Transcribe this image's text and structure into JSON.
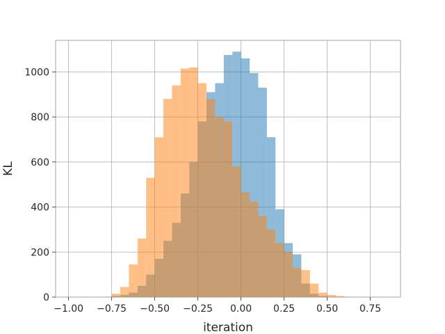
{
  "chart_data": {
    "type": "bar",
    "title": "",
    "xlabel": "iteration",
    "ylabel": "KL",
    "xlim": [
      -1.075,
      0.925
    ],
    "ylim": [
      0,
      1140
    ],
    "grid": true,
    "legend": "none",
    "bin_width": 0.05,
    "x_ticks": [
      -1.0,
      -0.75,
      -0.5,
      -0.25,
      0.0,
      0.25,
      0.5,
      0.75
    ],
    "x_tick_labels": [
      "−1.00",
      "−0.75",
      "−0.50",
      "−0.25",
      "0.00",
      "0.25",
      "0.50",
      "0.75"
    ],
    "y_ticks": [
      0,
      200,
      400,
      600,
      800,
      1000
    ],
    "y_tick_labels": [
      "0",
      "200",
      "400",
      "600",
      "800",
      "1000"
    ],
    "series": [
      {
        "color": "#1f77b4",
        "opacity": 0.5,
        "bin_starts": [
          -0.8,
          -0.75,
          -0.7,
          -0.65,
          -0.6,
          -0.55,
          -0.5,
          -0.45,
          -0.4,
          -0.35,
          -0.3,
          -0.25,
          -0.2,
          -0.15,
          -0.1,
          -0.05,
          0.0,
          0.05,
          0.1,
          0.15,
          0.2,
          0.25,
          0.3,
          0.35,
          0.4,
          0.45,
          0.5,
          0.55
        ],
        "values": [
          2,
          5,
          10,
          20,
          50,
          100,
          170,
          250,
          330,
          460,
          600,
          780,
          910,
          950,
          1075,
          1090,
          1060,
          995,
          930,
          710,
          390,
          240,
          190,
          60,
          15,
          5,
          2,
          1
        ]
      },
      {
        "color": "#ff7f0e",
        "opacity": 0.5,
        "bin_starts": [
          -0.75,
          -0.7,
          -0.65,
          -0.6,
          -0.55,
          -0.5,
          -0.45,
          -0.4,
          -0.35,
          -0.3,
          -0.25,
          -0.2,
          -0.15,
          -0.1,
          -0.05,
          0.0,
          0.05,
          0.1,
          0.15,
          0.2,
          0.25,
          0.3,
          0.35,
          0.4,
          0.45,
          0.5,
          0.55,
          0.6,
          0.65
        ],
        "values": [
          15,
          45,
          145,
          260,
          530,
          710,
          880,
          940,
          1015,
          1020,
          950,
          880,
          800,
          780,
          580,
          465,
          425,
          360,
          300,
          240,
          200,
          130,
          120,
          60,
          20,
          10,
          5,
          2,
          1
        ]
      }
    ]
  }
}
